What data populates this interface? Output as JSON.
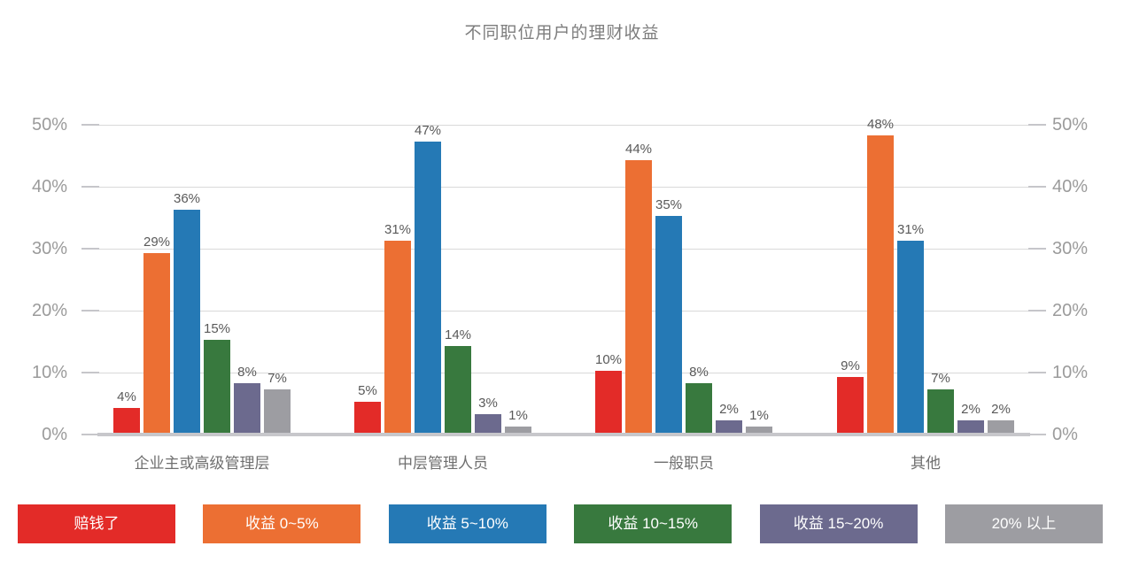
{
  "chart_data": {
    "type": "bar",
    "title": "不同职位用户的理财收益",
    "categories": [
      "企业主或高级管理层",
      "中层管理人员",
      "一般职员",
      "其他"
    ],
    "series": [
      {
        "name": "赔钱了",
        "color": "#e32b28",
        "values": [
          4,
          5,
          10,
          9
        ]
      },
      {
        "name": "收益 0~5%",
        "color": "#ec6f33",
        "values": [
          29,
          31,
          44,
          48
        ]
      },
      {
        "name": "收益 5~10%",
        "color": "#2579b5",
        "values": [
          36,
          47,
          35,
          31
        ]
      },
      {
        "name": "收益 10~15%",
        "color": "#38793e",
        "values": [
          15,
          14,
          8,
          7
        ]
      },
      {
        "name": "收益 15~20%",
        "color": "#6c6a8e",
        "values": [
          8,
          3,
          2,
          2
        ]
      },
      {
        "name": "20% 以上",
        "color": "#9d9da2",
        "values": [
          7,
          1,
          1,
          2
        ]
      }
    ],
    "ylim": [
      0,
      50
    ],
    "yticks": [
      0,
      10,
      20,
      30,
      40,
      50
    ],
    "ytick_labels": [
      "0%",
      "10%",
      "20%",
      "30%",
      "40%",
      "50%"
    ],
    "data_label_suffix": "%",
    "grid": true,
    "legend_position": "bottom",
    "axes": {
      "left_visible": true,
      "right_visible": true
    }
  }
}
